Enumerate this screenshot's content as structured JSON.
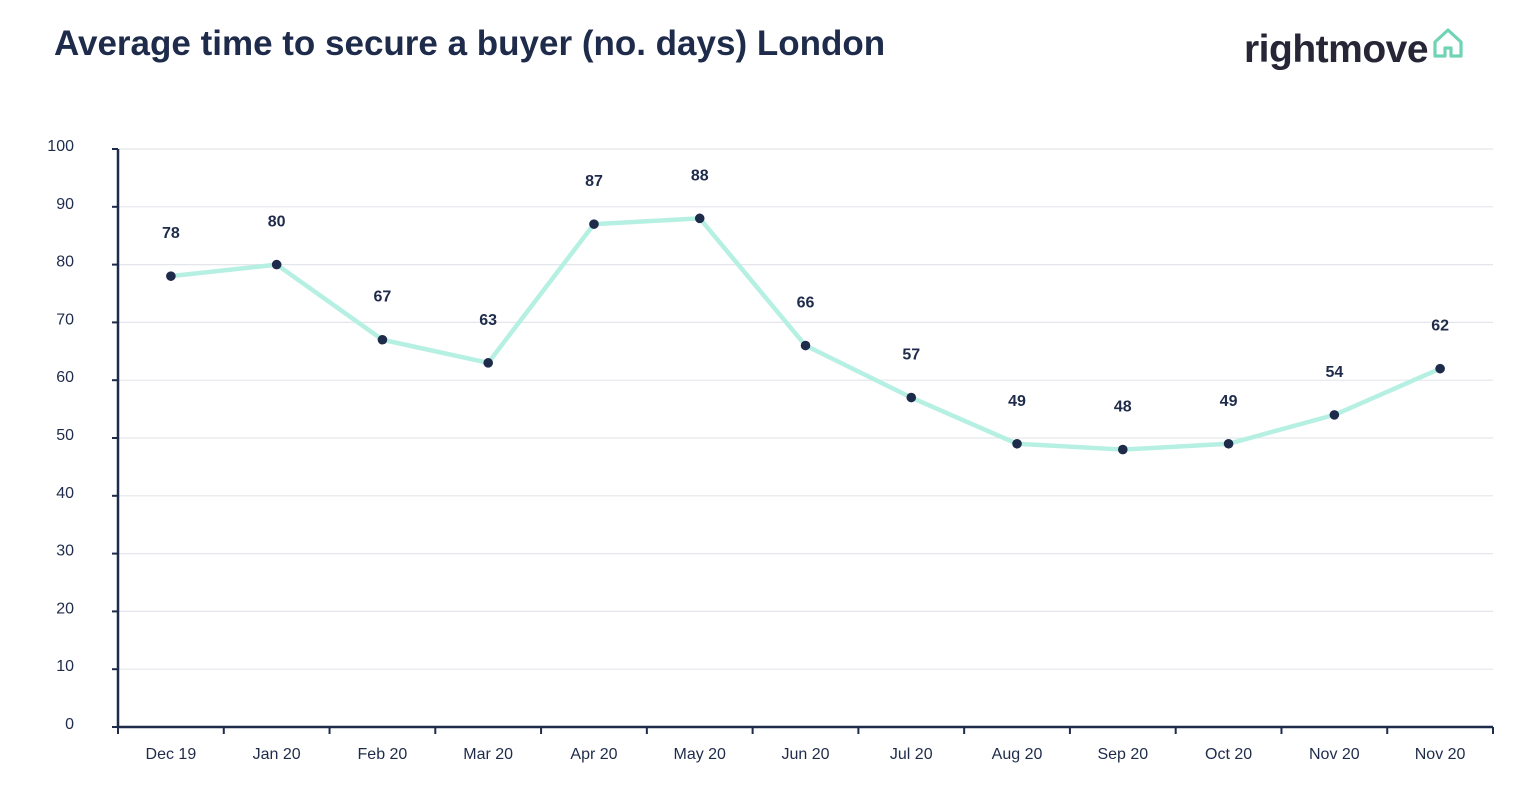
{
  "title": "Average time to secure a buyer (no. days) London",
  "brand": {
    "name": "rightmove",
    "icon": "house-outline-icon",
    "icon_color": "#6fd3b5"
  },
  "colors": {
    "text": "#1e2b4a",
    "line": "#b5f0e2",
    "marker": "#1e2b4a",
    "grid": "#e3e6ea"
  },
  "chart_data": {
    "type": "line",
    "title": "Average time to secure a buyer (no. days) London",
    "xlabel": "",
    "ylabel": "",
    "categories": [
      "Dec 19",
      "Jan 20",
      "Feb 20",
      "Mar 20",
      "Apr 20",
      "May 20",
      "Jun 20",
      "Jul 20",
      "Aug 20",
      "Sep 20",
      "Oct 20",
      "Nov 20",
      "Nov 20"
    ],
    "series": [
      {
        "values": [
          78,
          80,
          67,
          63,
          87,
          88,
          66,
          57,
          49,
          48,
          49,
          54,
          62
        ],
        "data_labels": [
          "78",
          "80",
          "67",
          "63",
          "87",
          "88",
          "66",
          "57",
          "49",
          "48",
          "49",
          "54",
          "62"
        ]
      }
    ],
    "ylim": [
      0,
      100
    ],
    "yticks": [
      0,
      10,
      20,
      30,
      40,
      50,
      60,
      70,
      80,
      90,
      100
    ],
    "ytick_labels": [
      "0",
      "10",
      "20",
      "30",
      "40",
      "50",
      "60",
      "70",
      "80",
      "90",
      "100"
    ],
    "grid": true,
    "legend": "none",
    "data_labels_shown": true
  }
}
